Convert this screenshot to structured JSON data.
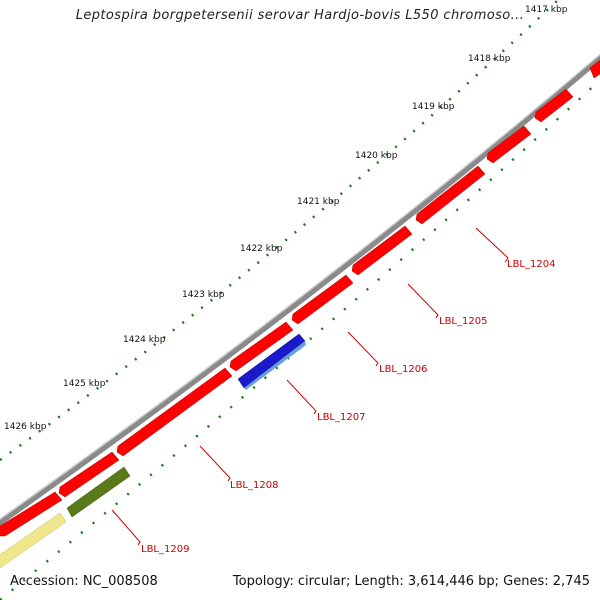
{
  "title": "Leptospira borgpetersenii serovar Hardjo-bovis L550 chromoso...",
  "footer": {
    "accession": "Accession: NC_008508",
    "topology": "Topology: circular; Length: 3,614,446 bp; Genes: 2,745"
  },
  "ruler": {
    "ticks": [
      "1417 kbp",
      "1418 kbp",
      "1419 kbp",
      "1420 kbp",
      "1421 kbp",
      "1422 kbp",
      "1423 kbp",
      "1424 kbp",
      "1425 kbp",
      "1426 kbp"
    ]
  },
  "genes": [
    {
      "label": "LBL_1204",
      "color": "#ff0000"
    },
    {
      "label": "LBL_1205",
      "color": "#ff0000"
    },
    {
      "label": "LBL_1206",
      "color": "#ff0000"
    },
    {
      "label": "LBL_1207",
      "color": "#1a1acc"
    },
    {
      "label": "LBL_1208",
      "color": "#ff0000"
    },
    {
      "label": "LBL_1209",
      "color": "#5a7a1a"
    }
  ],
  "colors": {
    "backbone": "#808080",
    "forward_cds": "#ff0000",
    "reverse_cds_blue": "#1a1acc",
    "reverse_cds_olive": "#5a7a1a",
    "reverse_cds_pale": "#f0e68c",
    "tick": "#1a7a1a",
    "label_line": "#cc0000"
  }
}
